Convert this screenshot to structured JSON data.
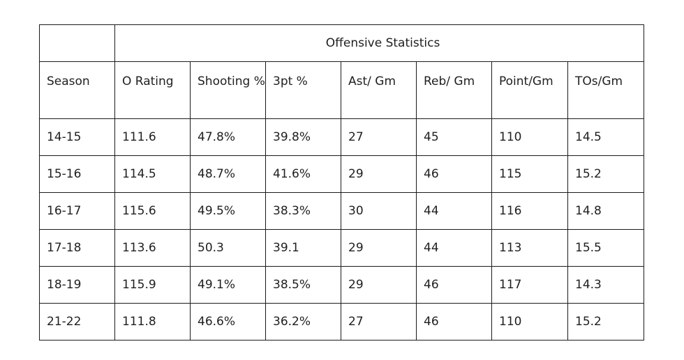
{
  "table": {
    "super_header": "Offensive Statistics",
    "columns": [
      "Season",
      "O Rating",
      "Shooting %",
      "3pt %",
      "Ast/ Gm",
      "Reb/ Gm",
      "Point/Gm",
      "TOs/Gm"
    ],
    "rows": [
      [
        "14-15",
        "111.6",
        "47.8%",
        "39.8%",
        "27",
        "45",
        "110",
        "14.5"
      ],
      [
        "15-16",
        "114.5",
        "48.7%",
        "41.6%",
        "29",
        "46",
        "115",
        "15.2"
      ],
      [
        "16-17",
        "115.6",
        "49.5%",
        "38.3%",
        "30",
        "44",
        "116",
        "14.8"
      ],
      [
        "17-18",
        "113.6",
        "50.3",
        "39.1",
        "29",
        "44",
        "113",
        "15.5"
      ],
      [
        "18-19",
        "115.9",
        "49.1%",
        "38.5%",
        "29",
        "46",
        "117",
        "14.3"
      ],
      [
        "21-22",
        "111.8",
        "46.6%",
        "36.2%",
        "27",
        "46",
        "110",
        "15.2"
      ]
    ]
  }
}
